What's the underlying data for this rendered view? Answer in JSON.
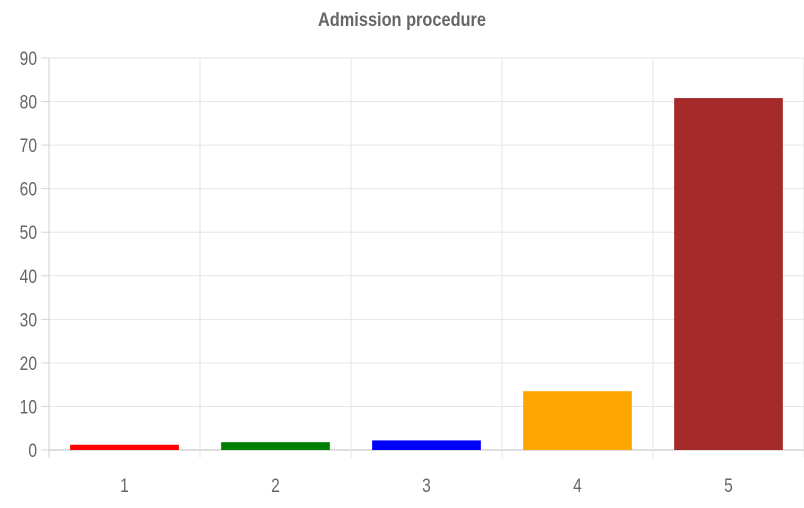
{
  "chart_data": {
    "type": "bar",
    "title": "Admission procedure",
    "xlabel": "",
    "ylabel": "",
    "categories": [
      "1",
      "2",
      "3",
      "4",
      "5"
    ],
    "values": [
      1.2,
      1.8,
      2.2,
      13.5,
      80.8
    ],
    "colors": [
      "#ff0000",
      "#008000",
      "#0000ff",
      "#ffa500",
      "#a52a2a"
    ],
    "ylim": [
      0,
      90
    ],
    "yticks": [
      0,
      10,
      20,
      30,
      40,
      50,
      60,
      70,
      80,
      90
    ],
    "grid": true,
    "legend": "none"
  }
}
